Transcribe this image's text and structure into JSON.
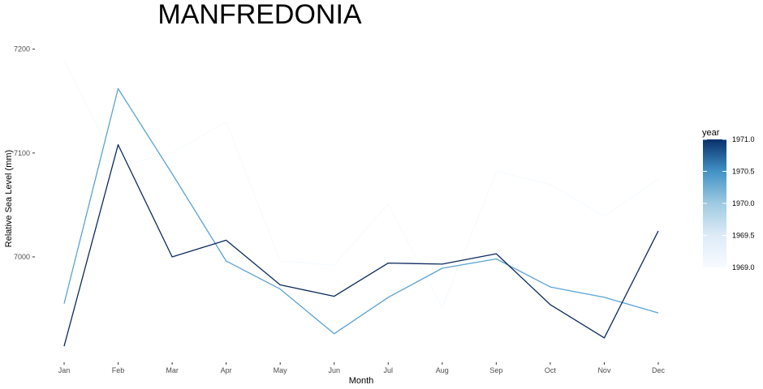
{
  "chart_data": {
    "type": "line",
    "title": "MANFREDONIA",
    "xlabel": "Month",
    "ylabel": "Relative Sea Level (mm)",
    "categories": [
      "Jan",
      "Feb",
      "Mar",
      "Apr",
      "May",
      "Jun",
      "Jul",
      "Aug",
      "Sep",
      "Oct",
      "Nov",
      "Dec"
    ],
    "y_ticks": [
      7000,
      7100,
      7200
    ],
    "ylim": [
      6911,
      7213
    ],
    "grid": false,
    "legend": {
      "title": "year",
      "position": "right",
      "type": "colorbar",
      "ticks": [
        "1969.0",
        "1969.5",
        "1970.0",
        "1970.5",
        "1971.0"
      ],
      "range": [
        1969.0,
        1971.0
      ],
      "colors": [
        "#f7fbff",
        "#deebf7",
        "#9ecae1",
        "#4292c6",
        "#08306b"
      ]
    },
    "series": [
      {
        "name": "1969",
        "year": 1969,
        "color": "#f7fbff",
        "values": [
          7189,
          7087,
          7100,
          7130,
          6996,
          6992,
          7051,
          6951,
          7082,
          7070,
          7039,
          7075
        ]
      },
      {
        "name": "1970",
        "year": 1970,
        "color": "#5aa2d4",
        "values": [
          6955,
          7162,
          7080,
          6996,
          6969,
          6926,
          6961,
          6989,
          6998,
          6971,
          6961,
          6946
        ]
      },
      {
        "name": "1971",
        "year": 1971,
        "color": "#0b2a5e",
        "values": [
          6914,
          7108,
          7000,
          7016,
          6973,
          6962,
          6994,
          6993,
          7003,
          6954,
          6922,
          7025
        ]
      }
    ]
  }
}
